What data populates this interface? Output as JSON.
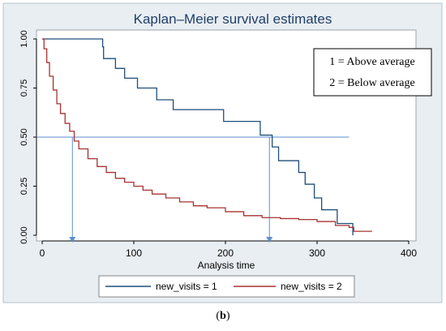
{
  "chart_data": {
    "type": "line",
    "step": true,
    "title": "Kaplan–Meier survival estimates",
    "xlabel": "Analysis time",
    "ylabel": "",
    "xlim": [
      0,
      400
    ],
    "ylim": [
      0,
      1
    ],
    "x_ticks": [
      "0",
      "100",
      "200",
      "300",
      "400"
    ],
    "y_ticks": [
      "0.00",
      "0.25",
      "0.50",
      "0.75",
      "1.00"
    ],
    "grid": false,
    "legend_position": "bottom",
    "colors": {
      "plot_bg": "#e9eef2",
      "panel_bg": "#ffffff",
      "series1": "#1f4e79",
      "series2": "#a83232",
      "guide": "#5b8fd0"
    },
    "series": [
      {
        "name": "new_visits = 1",
        "color": "#1f4e79",
        "x": [
          0,
          66,
          67,
          80,
          90,
          104,
          125,
          143,
          198,
          238,
          251,
          258,
          280,
          287,
          297,
          305,
          322,
          339
        ],
        "y": [
          1.0,
          0.96,
          0.9,
          0.85,
          0.8,
          0.75,
          0.69,
          0.64,
          0.58,
          0.51,
          0.45,
          0.38,
          0.32,
          0.26,
          0.19,
          0.13,
          0.06,
          0.0
        ]
      },
      {
        "name": "new_visits = 2",
        "color": "#a83232",
        "x": [
          0,
          2,
          5,
          8,
          12,
          16,
          20,
          25,
          30,
          35,
          40,
          50,
          60,
          70,
          80,
          90,
          100,
          110,
          120,
          135,
          150,
          165,
          180,
          200,
          220,
          240,
          260,
          280,
          300,
          320,
          335,
          340,
          350,
          360
        ],
        "y": [
          1.0,
          0.95,
          0.88,
          0.81,
          0.74,
          0.67,
          0.62,
          0.57,
          0.53,
          0.48,
          0.44,
          0.39,
          0.35,
          0.32,
          0.29,
          0.27,
          0.25,
          0.23,
          0.21,
          0.19,
          0.17,
          0.15,
          0.14,
          0.12,
          0.1,
          0.09,
          0.085,
          0.08,
          0.07,
          0.05,
          0.04,
          0.02,
          0.02,
          0.02
        ]
      }
    ],
    "median_line_y": 0.5,
    "median_line_x_range": [
      0,
      335
    ],
    "median_markers": [
      33,
      248
    ]
  },
  "legend_box": {
    "line1": "1 = Above average",
    "line2": "2 = Below average"
  },
  "caption_label": "b"
}
